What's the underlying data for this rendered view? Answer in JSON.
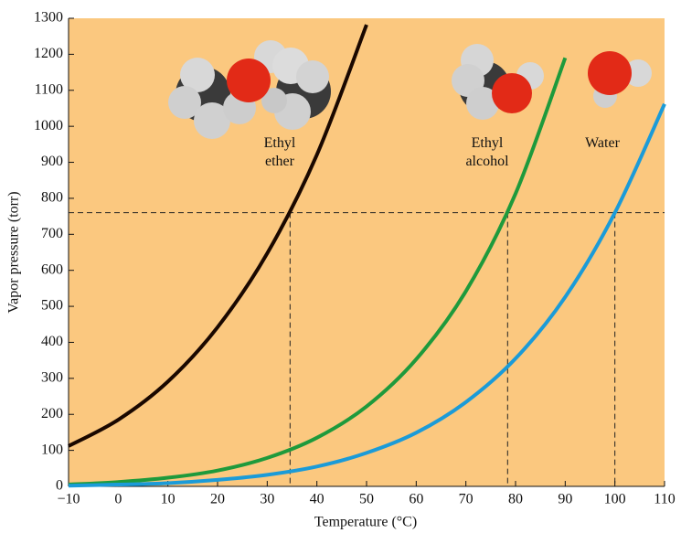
{
  "chart_data": {
    "type": "line",
    "xlabel": "Temperature (°C)",
    "ylabel": "Vapor pressure (torr)",
    "xlim": [
      -10,
      110
    ],
    "ylim": [
      0,
      1300
    ],
    "xticks": [
      {
        "value": -10,
        "label": "−10"
      },
      0,
      10,
      20,
      30,
      40,
      50,
      60,
      70,
      80,
      90,
      100,
      110
    ],
    "yticks": [
      0,
      100,
      200,
      300,
      400,
      500,
      600,
      700,
      800,
      900,
      1000,
      1100,
      1200,
      1300
    ],
    "background": "#fbc87f",
    "reference_lines": {
      "y": 760,
      "x": [
        34.6,
        78.4,
        100
      ]
    },
    "series": [
      {
        "name": "Ethyl ether",
        "color": "#1a0800",
        "x": [
          -10,
          0,
          10,
          20,
          30,
          40,
          50
        ],
        "values": [
          112,
          185,
          291,
          442,
          647,
          921,
          1282
        ]
      },
      {
        "name": "Ethyl alcohol",
        "color": "#1e9a3c",
        "x": [
          -10,
          0,
          10,
          20,
          30,
          40,
          50,
          60,
          70,
          80,
          90
        ],
        "values": [
          5,
          12,
          24,
          44,
          79,
          135,
          222,
          353,
          542,
          813,
          1190
        ]
      },
      {
        "name": "Water",
        "color": "#1b9bd8",
        "x": [
          -10,
          0,
          10,
          20,
          30,
          40,
          50,
          60,
          70,
          80,
          90,
          100,
          110
        ],
        "values": [
          2,
          5,
          9,
          18,
          32,
          55,
          93,
          149,
          234,
          355,
          526,
          760,
          1062
        ]
      }
    ]
  }
}
